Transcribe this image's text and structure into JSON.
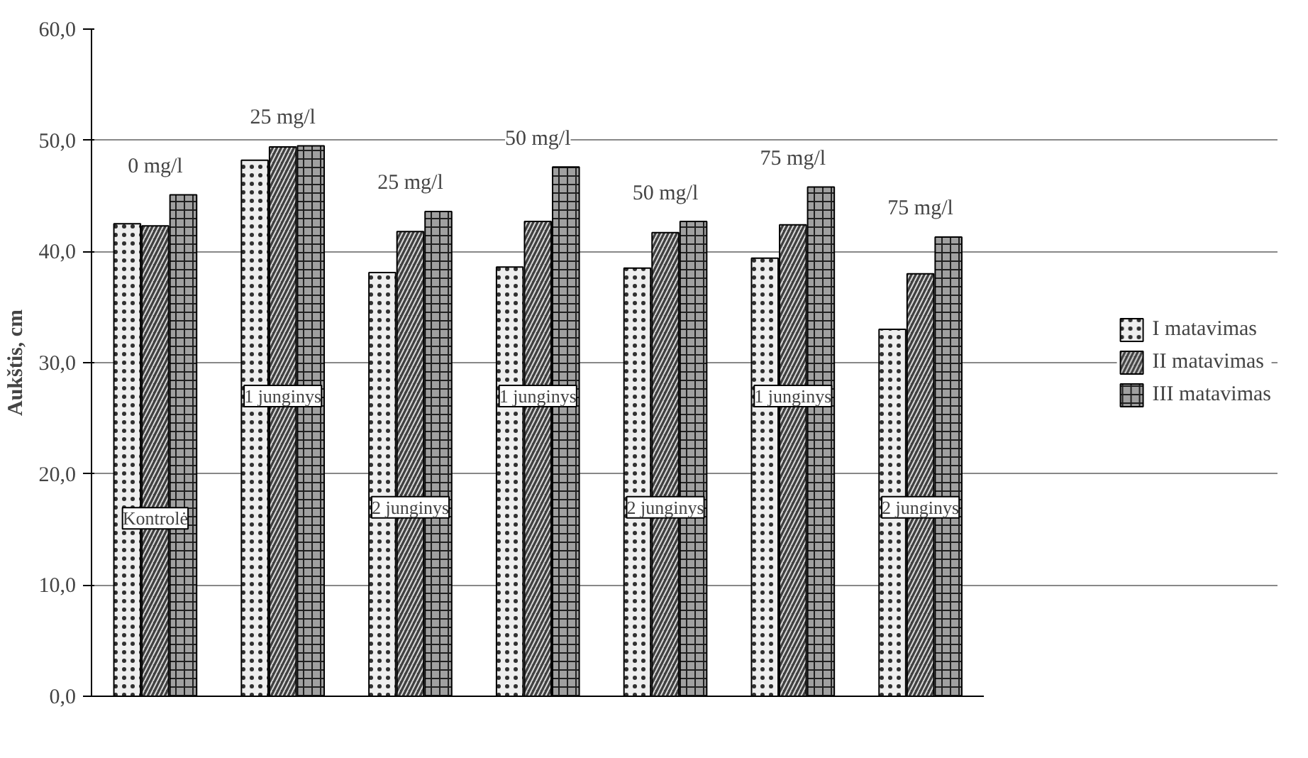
{
  "chart_data": {
    "type": "bar",
    "ylabel": "Aukštis, cm",
    "categories": [
      null,
      null,
      null,
      null,
      null,
      null,
      null
    ],
    "series": [
      {
        "name": "I matavimas",
        "color": "#eeeeee",
        "values": [
          42.5,
          48.2,
          38.1,
          38.6,
          38.5,
          39.4,
          33.0
        ]
      },
      {
        "name": "II matavimas",
        "color": "#404040",
        "values": [
          42.3,
          49.4,
          41.8,
          42.7,
          41.7,
          42.4,
          38.0
        ]
      },
      {
        "name": "III matavimas",
        "color": "#a0a0a0",
        "values": [
          45.1,
          49.5,
          43.6,
          47.6,
          42.7,
          45.8,
          41.3
        ]
      }
    ],
    "ylim": [
      0,
      60
    ],
    "yticks": [
      {
        "value": 0,
        "label": "0,0"
      },
      {
        "value": 10,
        "label": "10,0"
      },
      {
        "value": 20,
        "label": "20,0"
      },
      {
        "value": 30,
        "label": "30,0"
      },
      {
        "value": 40,
        "label": "40,0"
      },
      {
        "value": 50,
        "label": "50,0"
      },
      {
        "value": 60,
        "label": "60,0"
      }
    ],
    "grid": "y",
    "legend": "right",
    "annotations": [
      "0 mg/l",
      "Kontrolė",
      "25 mg/l",
      "1 junginys",
      "25 mg/l",
      "2 junginys",
      "50 mg/l",
      "1 junginys",
      "50 mg/l",
      "2 junginys",
      "75 mg/l",
      "1 junginys",
      "75 mg/l",
      "2 junginys"
    ]
  }
}
